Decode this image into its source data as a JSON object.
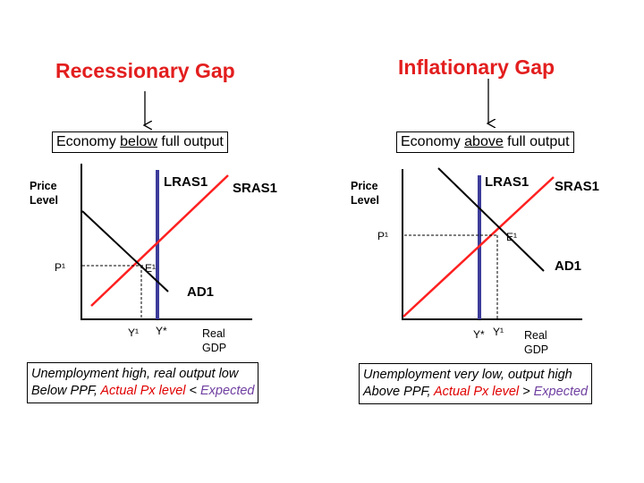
{
  "left": {
    "title": "Recessionary Gap",
    "box": {
      "pre": "Economy ",
      "emph": "below",
      "post": " full output"
    },
    "axis_y": [
      "Price",
      "Level"
    ],
    "lras": "LRAS1",
    "sras": "SRAS1",
    "ad": "AD1",
    "p_label": "P¹",
    "e_label": "E¹",
    "y_star": "Y*",
    "y_one": "Y¹",
    "axis_x": [
      "Real",
      "GDP"
    ],
    "note": {
      "line1": "Unemployment high, real output low",
      "line2_pre": "Below PPF, ",
      "actual": "Actual Px level",
      "op": " < ",
      "expected": "Expected"
    }
  },
  "right": {
    "title": "Inflationary Gap",
    "box": {
      "pre": "Economy ",
      "emph": "above",
      "post": " full output"
    },
    "axis_y": [
      "Price",
      "Level"
    ],
    "lras": "LRAS1",
    "sras": "SRAS1",
    "ad": "AD1",
    "p_label": "P¹",
    "e_label": "E¹",
    "y_star": "Y*",
    "y_one": "Y¹",
    "axis_x": [
      "Real",
      "GDP"
    ],
    "note": {
      "line1": "Unemployment very low, output high",
      "line2_pre": "Above PPF, ",
      "actual": "Actual Px level",
      "op": " > ",
      "expected": "Expected"
    }
  },
  "colors": {
    "title_red": "#e31e1e",
    "sras_red": "#ff2020",
    "lras_blue": "#3c3c9a",
    "actual_red": "#e00000",
    "expected_purple": "#7040a0"
  }
}
